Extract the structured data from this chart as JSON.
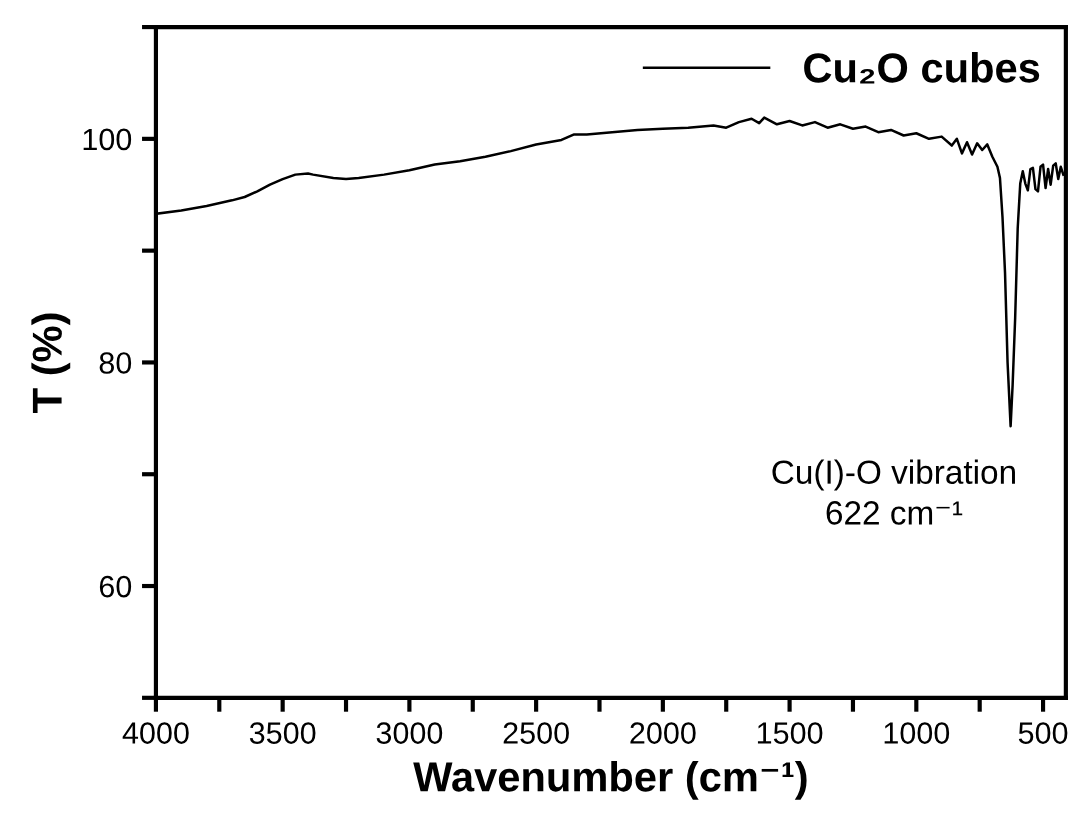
{
  "chart_data": {
    "type": "line",
    "xlabel": "Wavenumber (cm⁻¹)",
    "ylabel": "T (%)",
    "series": [
      {
        "name": "Cu₂O cubes",
        "color": "#000000",
        "x": [
          4000,
          3900,
          3800,
          3700,
          3650,
          3600,
          3550,
          3500,
          3450,
          3400,
          3380,
          3300,
          3250,
          3200,
          3100,
          3000,
          2900,
          2800,
          2700,
          2600,
          2500,
          2400,
          2350,
          2300,
          2200,
          2100,
          2000,
          1900,
          1800,
          1750,
          1700,
          1650,
          1620,
          1600,
          1550,
          1500,
          1450,
          1400,
          1350,
          1300,
          1250,
          1200,
          1150,
          1100,
          1050,
          1000,
          950,
          900,
          860,
          840,
          820,
          800,
          780,
          760,
          740,
          720,
          700,
          680,
          670,
          660,
          650,
          640,
          628,
          620,
          610,
          600,
          590,
          580,
          570,
          560,
          550,
          540,
          530,
          520,
          510,
          500,
          490,
          480,
          470,
          460,
          450,
          440,
          430,
          420
        ],
        "values": [
          93.3,
          93.6,
          94.0,
          94.5,
          94.8,
          95.3,
          95.9,
          96.4,
          96.8,
          96.9,
          96.8,
          96.5,
          96.4,
          96.5,
          96.8,
          97.2,
          97.7,
          98.0,
          98.4,
          98.9,
          99.5,
          99.9,
          100.4,
          100.4,
          100.6,
          100.8,
          100.9,
          101.0,
          101.2,
          101.0,
          101.5,
          101.8,
          101.4,
          101.9,
          101.3,
          101.6,
          101.2,
          101.5,
          101.0,
          101.3,
          100.9,
          101.1,
          100.6,
          100.8,
          100.3,
          100.5,
          100.0,
          100.2,
          99.4,
          100.0,
          98.7,
          99.7,
          98.6,
          99.6,
          99.0,
          99.5,
          98.4,
          97.5,
          96.5,
          93.0,
          88.0,
          80.0,
          74.3,
          78.0,
          84.0,
          92.0,
          96.0,
          97.1,
          96.0,
          95.4,
          97.3,
          97.4,
          95.5,
          95.3,
          97.5,
          97.7,
          95.6,
          97.3,
          95.9,
          97.6,
          97.8,
          96.4,
          97.5,
          96.8
        ]
      }
    ],
    "xlim": [
      4000,
      410
    ],
    "xticks": [
      4000,
      {
        "value": 3750,
        "label": null
      },
      3500,
      {
        "value": 3250,
        "label": null
      },
      3000,
      {
        "value": 2750,
        "label": null
      },
      2500,
      {
        "value": 2250,
        "label": null
      },
      2000,
      {
        "value": 1750,
        "label": null
      },
      1500,
      {
        "value": 1250,
        "label": null
      },
      1000,
      {
        "value": 750,
        "label": null
      },
      500
    ],
    "ylim": [
      50,
      110
    ],
    "yticks": [
      {
        "value": 50,
        "label": null
      },
      60,
      {
        "value": 70,
        "label": null
      },
      80,
      {
        "value": 90,
        "label": null
      },
      100,
      {
        "value": 110,
        "label": null
      }
    ],
    "annotations": [
      {
        "text": "Cu(I)-O vibration\n622 cm⁻¹",
        "x": 628,
        "y": 74.3
      }
    ],
    "legend": "top right",
    "grid": false
  }
}
